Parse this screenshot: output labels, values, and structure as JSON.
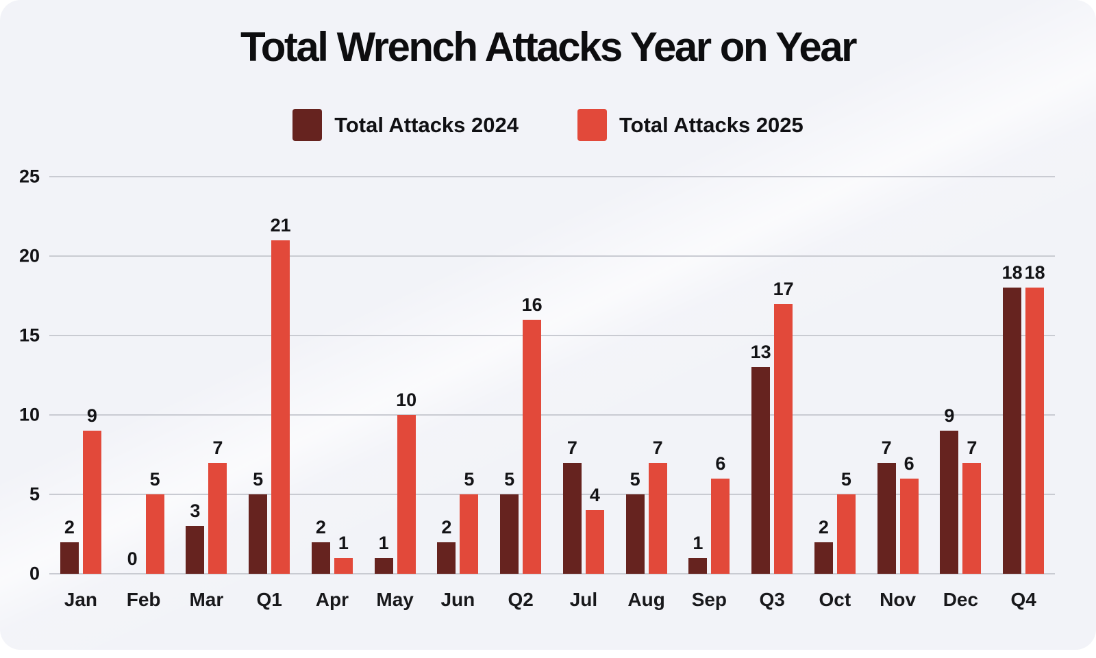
{
  "page": {
    "background": "#f2f3f8",
    "canvas": "#ffffff"
  },
  "chart_data": {
    "type": "bar",
    "title": "Total Wrench Attacks Year on Year",
    "categories": [
      "Jan",
      "Feb",
      "Mar",
      "Q1",
      "Apr",
      "May",
      "Jun",
      "Q2",
      "Jul",
      "Aug",
      "Sep",
      "Q3",
      "Oct",
      "Nov",
      "Dec",
      "Q4"
    ],
    "series": [
      {
        "name": "Total Attacks 2024",
        "color": "#66231f",
        "values": [
          2,
          0,
          3,
          5,
          2,
          1,
          2,
          5,
          7,
          5,
          1,
          13,
          2,
          7,
          9,
          18
        ]
      },
      {
        "name": "Total Attacks 2025",
        "color": "#e2493a",
        "values": [
          9,
          5,
          7,
          21,
          1,
          10,
          5,
          16,
          4,
          7,
          6,
          17,
          5,
          6,
          7,
          18
        ]
      }
    ],
    "xlabel": "",
    "ylabel": "",
    "ylim": [
      0,
      25
    ],
    "yticks": [
      0,
      5,
      10,
      15,
      20,
      25
    ],
    "grid": true,
    "legend_position": "top",
    "value_labels_shown": true,
    "gridline_color": "#c9cbd2",
    "text_color": "#131316"
  }
}
